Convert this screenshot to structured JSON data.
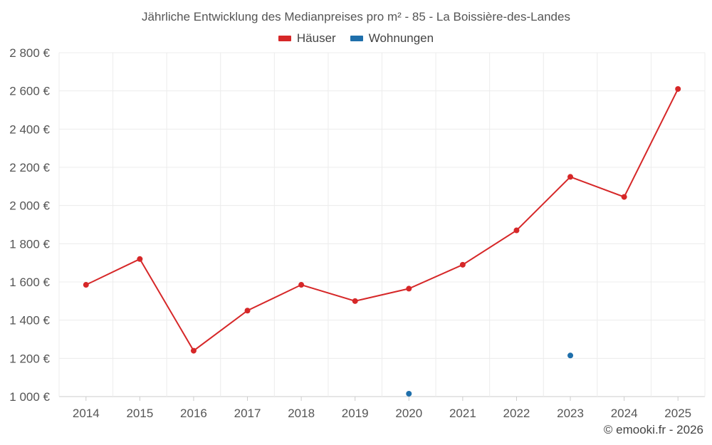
{
  "chart_data": {
    "type": "line",
    "title": "Jährliche Entwicklung des Medianpreises pro m² - 85 - La Boissière-des-Landes",
    "categories": [
      "2014",
      "2015",
      "2016",
      "2017",
      "2018",
      "2019",
      "2020",
      "2021",
      "2022",
      "2023",
      "2024",
      "2025"
    ],
    "series": [
      {
        "name": "Häuser",
        "color": "#d62728",
        "values": [
          1585,
          1720,
          1240,
          1450,
          1585,
          1500,
          1565,
          1690,
          1870,
          2150,
          2045,
          2610
        ]
      },
      {
        "name": "Wohnungen",
        "color": "#1f6fab",
        "values": [
          null,
          null,
          null,
          null,
          null,
          null,
          1015,
          null,
          null,
          1215,
          null,
          null
        ]
      }
    ],
    "ylim": [
      1000,
      2800
    ],
    "yticks": [
      1000,
      1200,
      1400,
      1600,
      1800,
      2000,
      2200,
      2400,
      2600,
      2800
    ],
    "ytick_labels": [
      "1 000 €",
      "1 200 €",
      "1 400 €",
      "1 600 €",
      "1 800 €",
      "2 000 €",
      "2 200 €",
      "2 400 €",
      "2 600 €",
      "2 800 €"
    ],
    "xlabel": "",
    "ylabel": "",
    "grid": true,
    "legend_position": "top-center"
  },
  "footer": {
    "credit": "© emooki.fr - 2026"
  }
}
